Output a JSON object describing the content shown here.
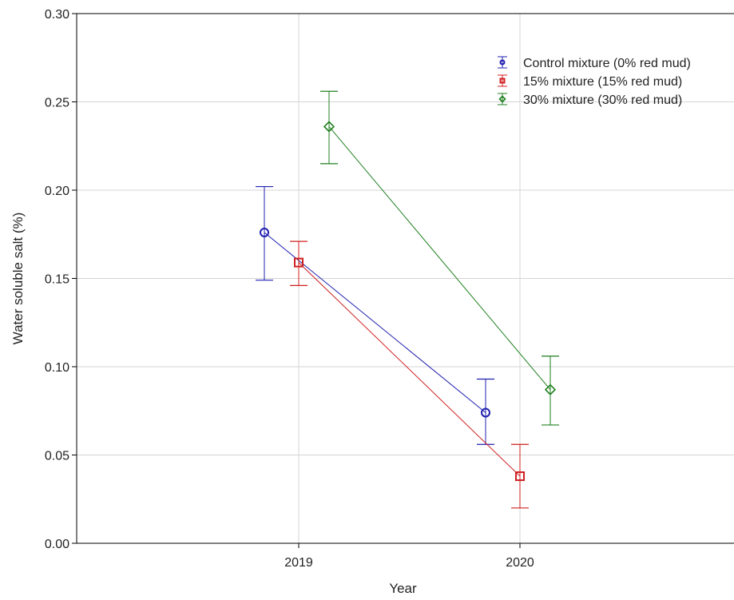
{
  "chart_data": {
    "type": "line",
    "title": "",
    "xlabel": "Year",
    "ylabel": "Water soluble salt (%)",
    "categories": [
      "2019",
      "2020"
    ],
    "ylim": [
      0.0,
      0.3
    ],
    "yticks": [
      "0.00",
      "0.05",
      "0.10",
      "0.15",
      "0.20",
      "0.25",
      "0.30"
    ],
    "grid": true,
    "legend_position": "top-right",
    "series": [
      {
        "name": "Control mixture (0% red mud)",
        "color": "#2020b0",
        "marker": "circle",
        "values": [
          0.176,
          0.074
        ],
        "err_low": [
          0.149,
          0.056
        ],
        "err_high": [
          0.202,
          0.093
        ]
      },
      {
        "name": "15% mixture (15% red mud)",
        "color": "#d02020",
        "marker": "square",
        "values": [
          0.159,
          0.038
        ],
        "err_low": [
          0.146,
          0.02
        ],
        "err_high": [
          0.171,
          0.056
        ]
      },
      {
        "name": "30% mixture (30% red mud)",
        "color": "#208020",
        "marker": "diamond",
        "values": [
          0.236,
          0.087
        ],
        "err_low": [
          0.215,
          0.067
        ],
        "err_high": [
          0.256,
          0.106
        ]
      }
    ]
  }
}
